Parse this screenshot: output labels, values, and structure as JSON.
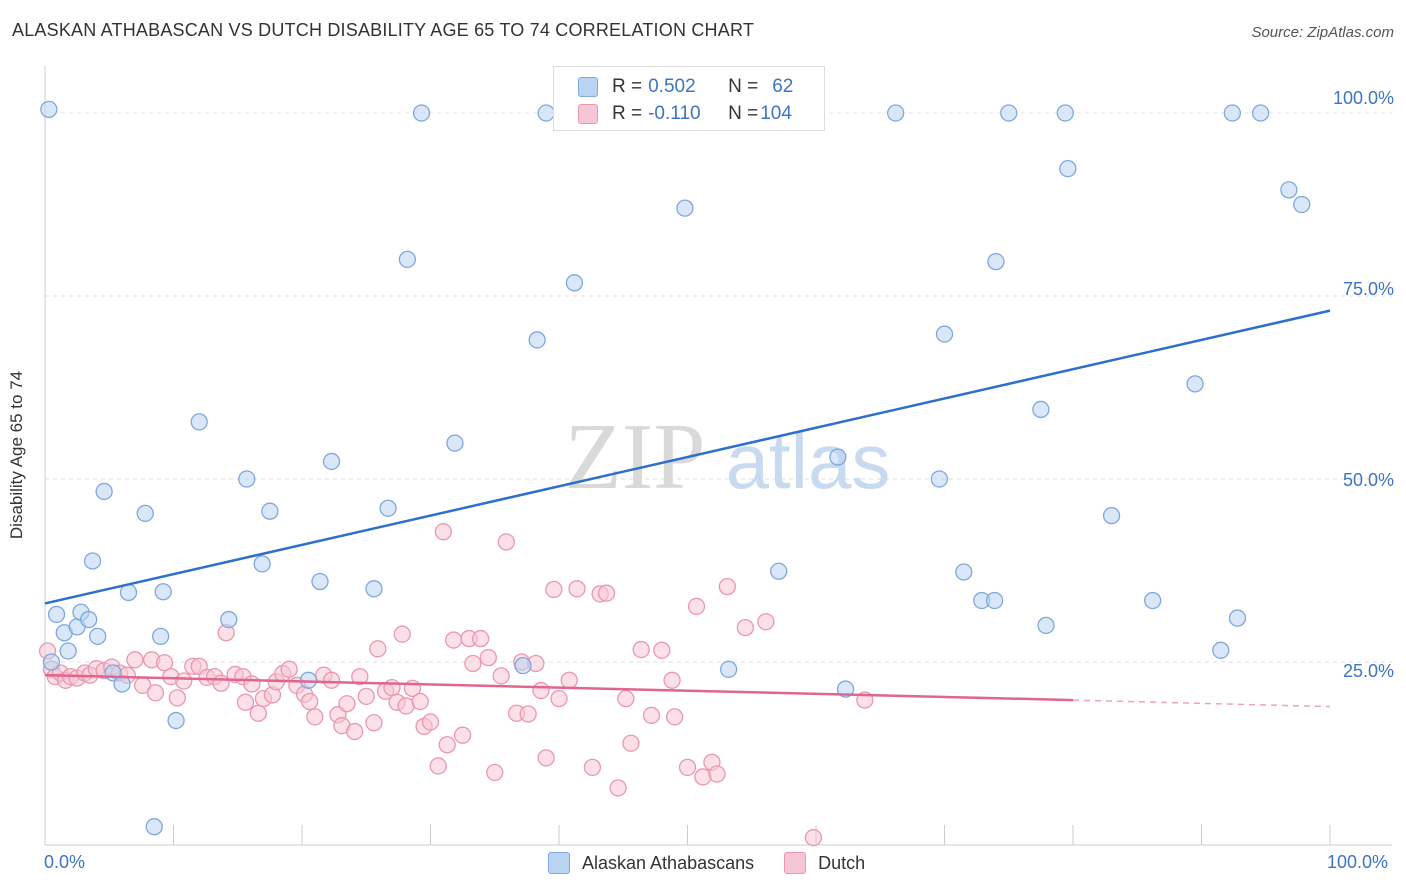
{
  "title": "ALASKAN ATHABASCAN VS DUTCH DISABILITY AGE 65 TO 74 CORRELATION CHART",
  "source": "Source: ZipAtlas.com",
  "watermark": {
    "zip": "ZIP",
    "atlas": "atlas"
  },
  "legend": {
    "r_label": "R = ",
    "n_label": "N = ",
    "series1": {
      "r": "0.502",
      "n": "62"
    },
    "series2": {
      "r": "-0.110",
      "n": "104"
    }
  },
  "colors": {
    "blue_fill": "#b9d3f3",
    "blue_stroke": "#7ea8de",
    "blue_line": "#2c6fcc",
    "pink_fill": "#f7c6d4",
    "pink_stroke": "#ea97b1",
    "pink_line": "#e0658f",
    "axis_text": "#3d74c4"
  },
  "chart_data": {
    "type": "scatter",
    "title": "ALASKAN ATHABASCAN VS DUTCH DISABILITY AGE 65 TO 74 CORRELATION CHART",
    "xlabel": "",
    "ylabel": "Disability Age 65 to 74",
    "xlim": [
      0,
      100
    ],
    "ylim": [
      0,
      103
    ],
    "x_tick_labels": [
      "0.0%",
      "100.0%"
    ],
    "y_tick_labels": [
      "25.0%",
      "50.0%",
      "75.0%",
      "100.0%"
    ],
    "y_ticks": [
      25,
      50,
      75,
      100
    ],
    "grid": true,
    "legend_position": "top-center",
    "series": [
      {
        "name": "Alaskan Athabascans",
        "color": "#b9d3f3",
        "trend": {
          "x": [
            0,
            100
          ],
          "y": [
            33.0,
            73.0
          ]
        },
        "points": [
          [
            0.5,
            25.0
          ],
          [
            0.9,
            31.5
          ],
          [
            1.5,
            29.0
          ],
          [
            1.8,
            26.5
          ],
          [
            2.5,
            29.8
          ],
          [
            2.8,
            31.8
          ],
          [
            3.4,
            30.8
          ],
          [
            3.7,
            38.8
          ],
          [
            4.1,
            28.5
          ],
          [
            4.6,
            48.3
          ],
          [
            5.3,
            23.5
          ],
          [
            6.0,
            22.0
          ],
          [
            6.5,
            34.5
          ],
          [
            7.8,
            45.3
          ],
          [
            8.5,
            2.5
          ],
          [
            9.0,
            28.5
          ],
          [
            9.2,
            34.6
          ],
          [
            10.2,
            17.0
          ],
          [
            12.0,
            57.8
          ],
          [
            14.3,
            30.8
          ],
          [
            15.7,
            50.0
          ],
          [
            16.9,
            38.4
          ],
          [
            17.5,
            45.6
          ],
          [
            20.5,
            22.5
          ],
          [
            21.4,
            36.0
          ],
          [
            22.3,
            52.4
          ],
          [
            25.6,
            35.0
          ],
          [
            26.7,
            46.0
          ],
          [
            28.2,
            80.0
          ],
          [
            29.3,
            100.0
          ],
          [
            31.9,
            54.9
          ],
          [
            37.2,
            24.5
          ],
          [
            38.3,
            69.0
          ],
          [
            39.0,
            100.0
          ],
          [
            41.2,
            76.8
          ],
          [
            49.8,
            87.0
          ],
          [
            53.2,
            24.0
          ],
          [
            57.1,
            37.4
          ],
          [
            61.7,
            53.0
          ],
          [
            62.3,
            21.3
          ],
          [
            66.2,
            100.0
          ],
          [
            69.6,
            50.0
          ],
          [
            70.0,
            69.8
          ],
          [
            71.5,
            37.3
          ],
          [
            72.9,
            33.4
          ],
          [
            73.9,
            33.4
          ],
          [
            74.0,
            79.7
          ],
          [
            75.0,
            100.0
          ],
          [
            77.5,
            59.5
          ],
          [
            77.9,
            30.0
          ],
          [
            79.4,
            100.0
          ],
          [
            79.6,
            92.4
          ],
          [
            83.0,
            45.0
          ],
          [
            86.2,
            33.4
          ],
          [
            89.5,
            63.0
          ],
          [
            91.5,
            26.6
          ],
          [
            92.4,
            100.0
          ],
          [
            92.8,
            31.0
          ],
          [
            94.6,
            100.0
          ],
          [
            96.8,
            89.5
          ],
          [
            97.8,
            87.5
          ],
          [
            0.3,
            100.5
          ]
        ]
      },
      {
        "name": "Dutch",
        "color": "#f7c6d4",
        "trend": {
          "x": [
            0,
            80
          ],
          "y": [
            23.2,
            19.8
          ],
          "dashed_to": {
            "x": 100,
            "y": 18.9
          }
        },
        "points": [
          [
            0.2,
            26.5
          ],
          [
            0.5,
            24.0
          ],
          [
            0.8,
            23.0
          ],
          [
            1.2,
            23.5
          ],
          [
            1.6,
            22.5
          ],
          [
            2.0,
            23.0
          ],
          [
            2.5,
            22.8
          ],
          [
            3.1,
            23.5
          ],
          [
            3.5,
            23.2
          ],
          [
            4.0,
            24.1
          ],
          [
            4.6,
            23.8
          ],
          [
            5.2,
            24.3
          ],
          [
            5.8,
            23.5
          ],
          [
            6.4,
            23.2
          ],
          [
            7.0,
            25.3
          ],
          [
            7.6,
            21.8
          ],
          [
            8.3,
            25.3
          ],
          [
            8.6,
            20.8
          ],
          [
            9.3,
            24.9
          ],
          [
            9.8,
            23.0
          ],
          [
            10.3,
            20.1
          ],
          [
            10.8,
            22.4
          ],
          [
            11.5,
            24.4
          ],
          [
            12.0,
            24.4
          ],
          [
            12.6,
            22.9
          ],
          [
            13.2,
            23.0
          ],
          [
            13.7,
            22.1
          ],
          [
            14.1,
            29.0
          ],
          [
            14.8,
            23.3
          ],
          [
            15.4,
            23.0
          ],
          [
            15.6,
            19.5
          ],
          [
            16.1,
            22.0
          ],
          [
            16.6,
            18.0
          ],
          [
            17.0,
            20.0
          ],
          [
            17.7,
            20.5
          ],
          [
            18.0,
            22.3
          ],
          [
            18.5,
            23.4
          ],
          [
            19.0,
            24.0
          ],
          [
            19.6,
            21.8
          ],
          [
            20.2,
            20.6
          ],
          [
            20.6,
            19.6
          ],
          [
            21.0,
            17.5
          ],
          [
            21.7,
            23.2
          ],
          [
            22.3,
            22.5
          ],
          [
            22.8,
            17.8
          ],
          [
            23.1,
            16.3
          ],
          [
            23.5,
            19.3
          ],
          [
            24.1,
            15.5
          ],
          [
            24.5,
            23.0
          ],
          [
            25.0,
            20.3
          ],
          [
            25.6,
            16.7
          ],
          [
            25.9,
            26.8
          ],
          [
            26.5,
            21.0
          ],
          [
            27.0,
            21.5
          ],
          [
            27.4,
            19.5
          ],
          [
            27.8,
            28.8
          ],
          [
            28.1,
            19.0
          ],
          [
            28.6,
            21.4
          ],
          [
            29.2,
            19.6
          ],
          [
            29.5,
            16.2
          ],
          [
            30.0,
            16.8
          ],
          [
            30.6,
            10.8
          ],
          [
            31.0,
            42.8
          ],
          [
            31.3,
            13.7
          ],
          [
            31.8,
            28.0
          ],
          [
            32.5,
            15.0
          ],
          [
            33.0,
            28.2
          ],
          [
            33.3,
            24.8
          ],
          [
            33.9,
            28.2
          ],
          [
            34.5,
            25.6
          ],
          [
            35.0,
            9.9
          ],
          [
            35.5,
            23.1
          ],
          [
            35.9,
            41.4
          ],
          [
            36.7,
            18.0
          ],
          [
            37.1,
            25.0
          ],
          [
            37.6,
            17.9
          ],
          [
            38.2,
            24.8
          ],
          [
            38.6,
            21.1
          ],
          [
            39.0,
            11.9
          ],
          [
            39.6,
            34.9
          ],
          [
            40.0,
            20.0
          ],
          [
            40.8,
            22.5
          ],
          [
            41.4,
            35.0
          ],
          [
            42.6,
            10.6
          ],
          [
            43.2,
            34.3
          ],
          [
            43.7,
            34.4
          ],
          [
            44.6,
            7.8
          ],
          [
            45.2,
            20.0
          ],
          [
            45.6,
            13.9
          ],
          [
            46.4,
            26.7
          ],
          [
            47.2,
            17.7
          ],
          [
            48.0,
            26.6
          ],
          [
            48.8,
            22.5
          ],
          [
            49.0,
            17.5
          ],
          [
            50.0,
            10.6
          ],
          [
            50.7,
            32.6
          ],
          [
            51.2,
            9.3
          ],
          [
            51.9,
            11.3
          ],
          [
            52.3,
            9.7
          ],
          [
            53.1,
            35.3
          ],
          [
            54.5,
            29.7
          ],
          [
            56.1,
            30.5
          ],
          [
            59.8,
            1.0
          ],
          [
            63.8,
            19.8
          ]
        ]
      }
    ]
  },
  "x_axis": {
    "left": "0.0%",
    "right": "100.0%"
  },
  "y_axis": {
    "t25": "25.0%",
    "t50": "50.0%",
    "t75": "75.0%",
    "t100": "100.0%"
  }
}
